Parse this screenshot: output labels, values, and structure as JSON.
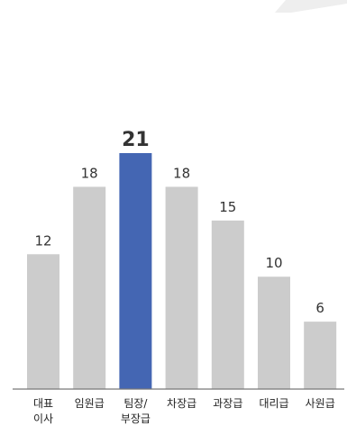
{
  "chart_data": {
    "type": "bar",
    "categories": [
      [
        "대표",
        "이사"
      ],
      [
        "임원급"
      ],
      [
        "팀장/",
        "부장급"
      ],
      [
        "차장급"
      ],
      [
        "과장급"
      ],
      [
        "대리급"
      ],
      [
        "사원급"
      ]
    ],
    "values": [
      12,
      18,
      21,
      18,
      15,
      10,
      6
    ],
    "value_labels": [
      "12",
      "18",
      "21",
      "18",
      "15",
      "10",
      "6"
    ],
    "highlight_index": 2,
    "ylim": [
      0,
      21
    ],
    "grid": false,
    "legend": "none",
    "colors": {
      "bar": "#cccccc",
      "highlight": "#4466b3",
      "baseline": "#777777",
      "text": "#333333",
      "corner_decoration": "#eeeeee"
    }
  }
}
